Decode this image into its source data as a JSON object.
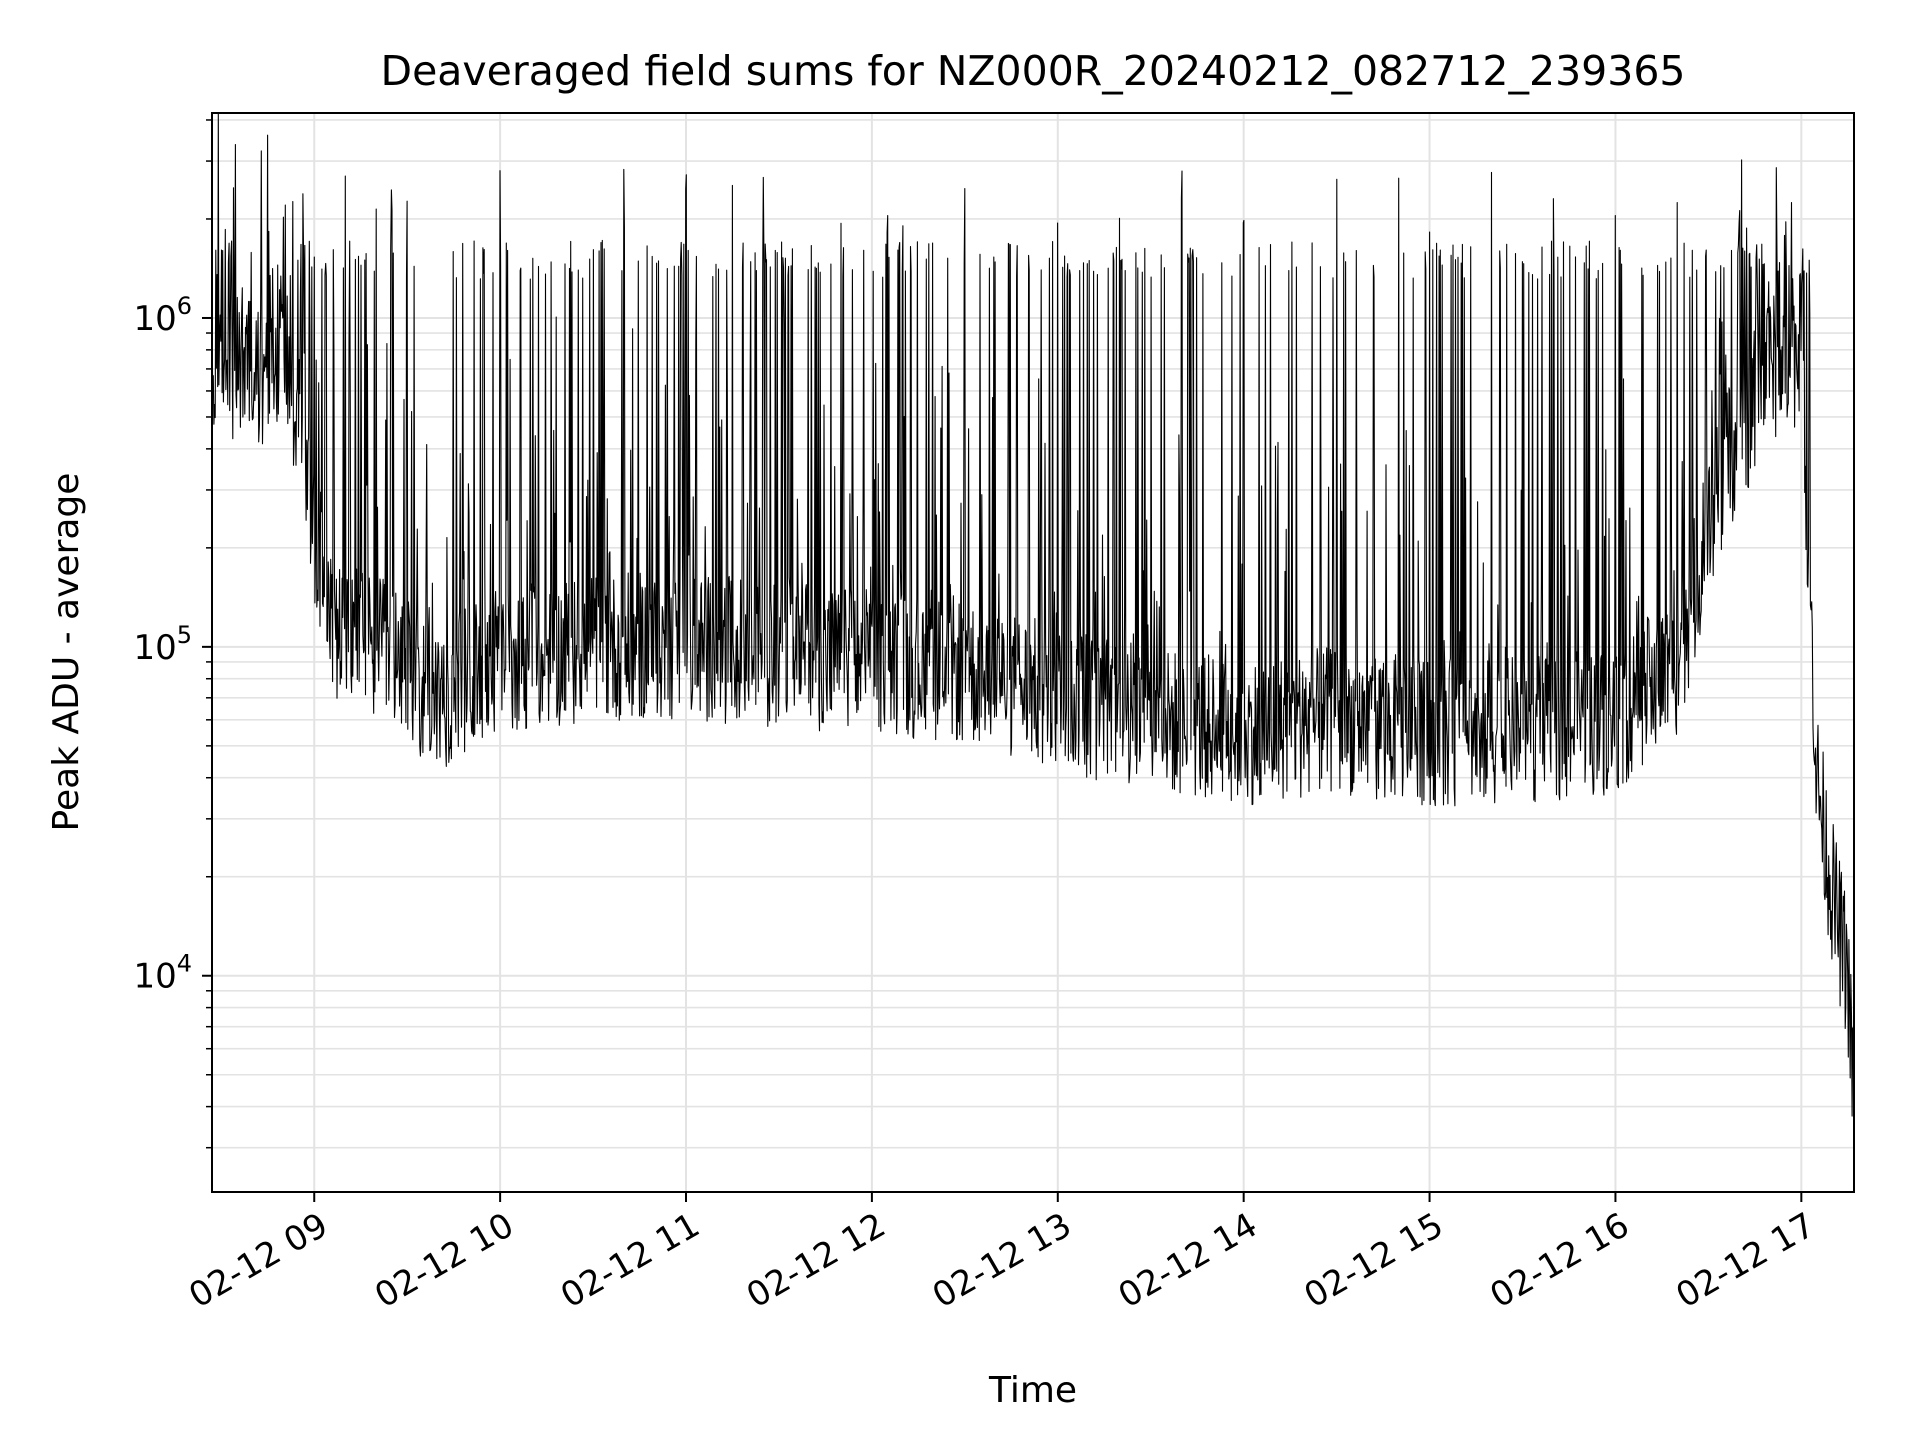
{
  "chart_data": {
    "type": "line",
    "title": "Deaveraged field sums for NZ000R_20240212_082712_239365",
    "xlabel": "Time",
    "ylabel": "Peak ADU - average",
    "yscale": "log",
    "ylim": [
      2200,
      4200000
    ],
    "xlim": [
      "02-12 08:27",
      "02-12 17:17"
    ],
    "grid": true,
    "line_color": "#000000",
    "x_ticks": [
      {
        "label": "02-12 09",
        "time": "02-12 09:00"
      },
      {
        "label": "02-12 10",
        "time": "02-12 10:00"
      },
      {
        "label": "02-12 11",
        "time": "02-12 11:00"
      },
      {
        "label": "02-12 12",
        "time": "02-12 12:00"
      },
      {
        "label": "02-12 13",
        "time": "02-12 13:00"
      },
      {
        "label": "02-12 14",
        "time": "02-12 14:00"
      },
      {
        "label": "02-12 15",
        "time": "02-12 15:00"
      },
      {
        "label": "02-12 16",
        "time": "02-12 16:00"
      },
      {
        "label": "02-12 17",
        "time": "02-12 17:00"
      }
    ],
    "y_ticks": [
      {
        "base": "10",
        "exp": "4",
        "value": 10000
      },
      {
        "base": "10",
        "exp": "5",
        "value": 100000
      },
      {
        "base": "10",
        "exp": "6",
        "value": 1000000
      }
    ],
    "series": [
      {
        "x": [
          "02-12 08:27",
          "02-12 08:35",
          "02-12 08:45",
          "02-12 08:50",
          "02-12 09:05",
          "02-12 09:20",
          "02-12 09:40",
          "02-12 10:00",
          "02-12 10:30",
          "02-12 11:00",
          "02-12 11:30",
          "02-12 12:00",
          "02-12 12:30",
          "02-12 13:00",
          "02-12 13:30",
          "02-12 14:00",
          "02-12 14:30",
          "02-12 15:00",
          "02-12 15:30",
          "02-12 16:00",
          "02-12 16:20",
          "02-12 16:35",
          "02-12 16:50",
          "02-12 17:00",
          "02-12 17:05",
          "02-12 17:10",
          "02-12 17:15",
          "02-12 17:17"
        ],
        "y": [
          600000,
          700000,
          650000,
          900000,
          120000,
          100000,
          70000,
          90000,
          100000,
          100000,
          95000,
          90000,
          85000,
          70000,
          60000,
          55000,
          60000,
          55000,
          55000,
          60000,
          90000,
          350000,
          700000,
          800000,
          40000,
          18000,
          10000,
          4000
        ],
        "peaks": [
          "02-12 08:50",
          "02-12 09:10",
          "02-12 09:20",
          "02-12 09:25",
          "02-12 09:30",
          "02-12 10:00",
          "02-12 10:40",
          "02-12 11:00",
          "02-12 11:15",
          "02-12 11:25",
          "02-12 11:50",
          "02-12 12:05",
          "02-12 12:10",
          "02-12 12:30",
          "02-12 13:00",
          "02-12 13:20",
          "02-12 13:40",
          "02-12 14:00",
          "02-12 14:30",
          "02-12 14:50",
          "02-12 15:00",
          "02-12 15:20",
          "02-12 15:40",
          "02-12 16:00",
          "02-12 16:20",
          "02-12 16:40",
          "02-12 16:55"
        ]
      }
    ]
  }
}
